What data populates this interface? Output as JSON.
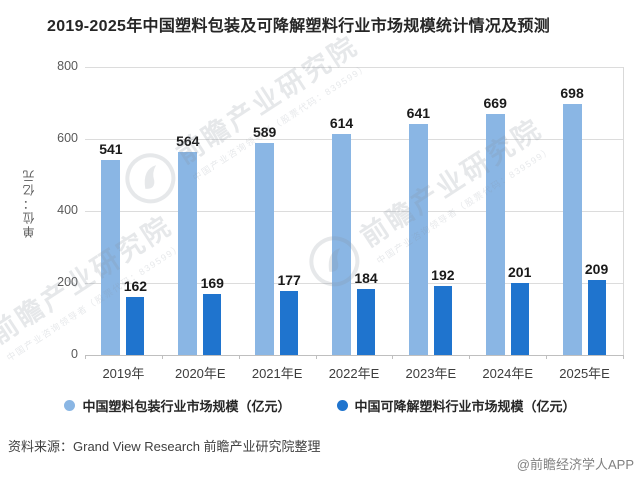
{
  "title": "2019-2025年中国塑料包装及可降解塑料行业市场规模统计情况及预测",
  "y_axis_title": "单位：亿元",
  "source_note": "资料来源：Grand View Research 前瞻产业研究院整理",
  "watermark_credit": "@前瞻经济学人APP",
  "watermark": {
    "text": "前瞻产业研究院",
    "subtext": "中国产业咨询领导者（股票代码：839599）"
  },
  "colors": {
    "light_blue": "#8AB6E4",
    "dark_blue": "#1F74CE",
    "grid": "#DCDCDC",
    "axis_text": "#595959"
  },
  "chart_data": {
    "type": "bar",
    "title": "2019-2025年中国塑料包装及可降解塑料行业市场规模统计情况及预测",
    "ylabel": "单位：亿元",
    "categories": [
      "2019年",
      "2020年E",
      "2021年E",
      "2022年E",
      "2023年E",
      "2024年E",
      "2025年E"
    ],
    "series": [
      {
        "name": "中国塑料包装行业市场规模（亿元）",
        "color_key": "light_blue",
        "values": [
          541,
          564,
          589,
          614,
          641,
          669,
          698
        ]
      },
      {
        "name": "中国可降解塑料行业市场规模（亿元）",
        "color_key": "dark_blue",
        "values": [
          162,
          169,
          177,
          184,
          192,
          201,
          209
        ]
      }
    ],
    "ylim": [
      0,
      800
    ],
    "yticks": [
      0,
      200,
      400,
      600,
      800
    ],
    "grid": true,
    "legend_position": "bottom"
  }
}
